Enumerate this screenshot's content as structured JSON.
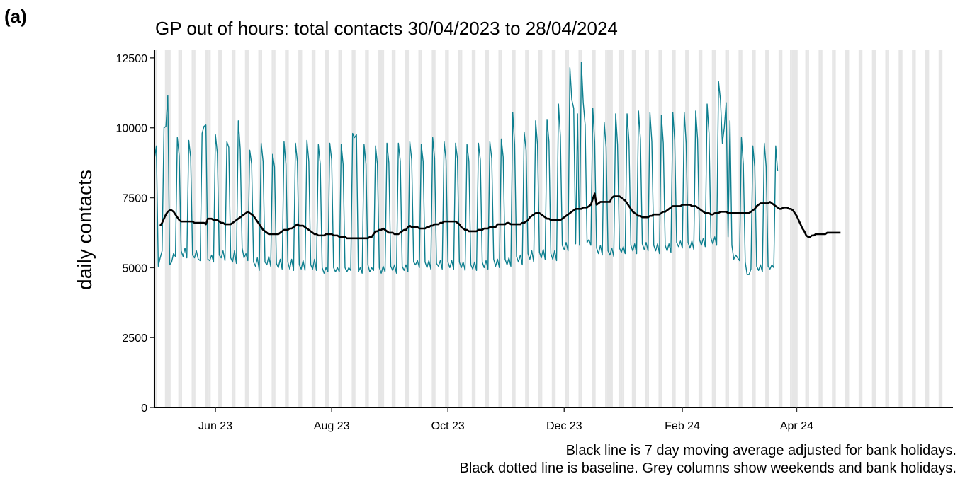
{
  "panel_label": "(a)",
  "chart_data": {
    "type": "line",
    "title": "GP out of hours: total contacts 30/04/2023 to 28/04/2024",
    "xlabel": "",
    "ylabel": "daily contacts",
    "xlim": [
      "2023-04-30",
      "2024-06-22"
    ],
    "ylim": [
      0,
      12800
    ],
    "yticks": [
      0,
      2500,
      5000,
      7500,
      10000,
      12500
    ],
    "xticks": [
      {
        "date": "2023-06-01",
        "label": "Jun 23"
      },
      {
        "date": "2023-08-01",
        "label": "Aug 23"
      },
      {
        "date": "2023-10-01",
        "label": "Oct 23"
      },
      {
        "date": "2023-12-01",
        "label": "Dec 23"
      },
      {
        "date": "2024-02-01",
        "label": "Feb 24"
      },
      {
        "date": "2024-04-01",
        "label": "Apr 24"
      }
    ],
    "series_color": "#0e7f8f",
    "average_color": "#000000",
    "shade_color": "#e6e6e6",
    "bank_holidays": [
      "2023-05-01",
      "2023-05-08",
      "2023-05-29",
      "2023-08-28",
      "2023-12-25",
      "2023-12-26",
      "2024-01-01",
      "2024-03-29",
      "2024-04-01"
    ],
    "series": [
      {
        "key": "daily",
        "start": "2023-04-30",
        "values": [
          8900,
          9350,
          5050,
          5350,
          5600,
          10000,
          10050,
          11150,
          5100,
          5200,
          5500,
          5400,
          9650,
          9000,
          5600,
          5400,
          5700,
          5350,
          9550,
          8950,
          5450,
          5350,
          5600,
          5300,
          5250,
          9800,
          10050,
          10100,
          5300,
          5250,
          5450,
          5200,
          9750,
          9100,
          5450,
          5350,
          5600,
          5250,
          9500,
          9300,
          5350,
          5200,
          5600,
          5150,
          10250,
          9250,
          5700,
          5350,
          5500,
          5250,
          9200,
          8700,
          5200,
          5050,
          5350,
          4900,
          9450,
          8800,
          5200,
          5100,
          5400,
          5050,
          9050,
          8600,
          5150,
          5000,
          5300,
          4950,
          9500,
          8700,
          5200,
          4950,
          5300,
          4900,
          9450,
          8800,
          5100,
          4950,
          5250,
          4900,
          9550,
          8800,
          5100,
          4950,
          5300,
          4900,
          9400,
          8700,
          5000,
          4800,
          5000,
          4850,
          9450,
          8850,
          5000,
          4850,
          5000,
          4850,
          9400,
          8700,
          5000,
          4850,
          5000,
          4900,
          9800,
          9650,
          9750,
          4850,
          5000,
          4800,
          9400,
          8700,
          5100,
          4850,
          5000,
          4900,
          9350,
          8700,
          5000,
          4800,
          5050,
          4850,
          9450,
          8750,
          5050,
          4900,
          5100,
          4800,
          9450,
          8800,
          5050,
          4900,
          5100,
          4850,
          9500,
          8850,
          5200,
          5100,
          5250,
          5000,
          9400,
          8800,
          5200,
          5000,
          5250,
          4950,
          9650,
          8900,
          5150,
          5050,
          5250,
          4950,
          9500,
          8850,
          5200,
          5000,
          5250,
          4950,
          9450,
          8900,
          5200,
          5000,
          5200,
          4900,
          9400,
          8800,
          5100,
          4950,
          5200,
          4900,
          9450,
          8850,
          5200,
          5000,
          5250,
          4950,
          9500,
          8900,
          5300,
          5050,
          5300,
          5000,
          9600,
          8950,
          5300,
          5100,
          5350,
          5050,
          10550,
          9400,
          5400,
          5200,
          5450,
          5100,
          9850,
          9200,
          5500,
          5300,
          5600,
          5200,
          10250,
          9400,
          5550,
          5350,
          5650,
          5300,
          10300,
          9500,
          5500,
          5300,
          5600,
          5250,
          10850,
          9700,
          5800,
          5650,
          5900,
          5600,
          12150,
          11000,
          10700,
          5850,
          10500,
          5800,
          12350,
          10900,
          10100,
          5900,
          6000,
          5800,
          10700,
          9500,
          5700,
          5500,
          5800,
          5450,
          10200,
          9300,
          5600,
          5450,
          5700,
          5400,
          10500,
          9400,
          5700,
          5550,
          5750,
          5500,
          10500,
          9500,
          5800,
          5600,
          5850,
          5500,
          10600,
          9600,
          5850,
          5650,
          5900,
          5600,
          10550,
          9500,
          5800,
          5600,
          5850,
          5500,
          10450,
          9450,
          5800,
          5600,
          5850,
          5550,
          10550,
          9550,
          5900,
          5750,
          5950,
          5700,
          10550,
          9450,
          5900,
          5700,
          5950,
          5650,
          10600,
          9600,
          6000,
          5800,
          6050,
          5750,
          10850,
          9800,
          6050,
          5850,
          6100,
          5800,
          11650,
          11000,
          9450,
          10000,
          10900,
          6100,
          10250,
          5800,
          5300,
          5450,
          5350,
          5250,
          9650,
          8700,
          5200,
          4750,
          4750,
          4950,
          9350,
          8600,
          5050,
          4900,
          5100,
          4850,
          9450,
          8600,
          5050,
          4950,
          5100,
          5000,
          9350,
          8450
        ]
      },
      {
        "key": "moving_average",
        "start": "2023-05-03",
        "values": [
          6500,
          6600,
          6750,
          6900,
          7000,
          7050,
          7050,
          7000,
          6900,
          6800,
          6700,
          6650,
          6650,
          6650,
          6650,
          6650,
          6650,
          6650,
          6600,
          6600,
          6600,
          6600,
          6600,
          6600,
          6550,
          6750,
          6750,
          6750,
          6700,
          6700,
          6700,
          6650,
          6600,
          6600,
          6550,
          6550,
          6550,
          6550,
          6600,
          6650,
          6700,
          6750,
          6800,
          6850,
          6900,
          6950,
          7000,
          6950,
          6900,
          6850,
          6750,
          6650,
          6550,
          6450,
          6350,
          6300,
          6250,
          6200,
          6200,
          6200,
          6200,
          6200,
          6200,
          6250,
          6300,
          6350,
          6350,
          6350,
          6400,
          6400,
          6450,
          6500,
          6550,
          6500,
          6500,
          6500,
          6450,
          6400,
          6350,
          6300,
          6250,
          6200,
          6200,
          6150,
          6150,
          6150,
          6150,
          6200,
          6200,
          6200,
          6200,
          6150,
          6150,
          6150,
          6100,
          6100,
          6100,
          6100,
          6050,
          6050,
          6050,
          6050,
          6050,
          6050,
          6050,
          6050,
          6050,
          6050,
          6050,
          6050,
          6100,
          6100,
          6200,
          6300,
          6300,
          6350,
          6350,
          6400,
          6350,
          6300,
          6250,
          6250,
          6250,
          6200,
          6200,
          6200,
          6250,
          6300,
          6350,
          6350,
          6450,
          6500,
          6450,
          6450,
          6450,
          6450,
          6400,
          6400,
          6400,
          6400,
          6450,
          6450,
          6500,
          6500,
          6550,
          6550,
          6550,
          6600,
          6600,
          6650,
          6650,
          6650,
          6650,
          6650,
          6650,
          6650,
          6600,
          6550,
          6450,
          6400,
          6350,
          6350,
          6300,
          6300,
          6300,
          6300,
          6300,
          6350,
          6350,
          6350,
          6400,
          6400,
          6400,
          6450,
          6450,
          6450,
          6450,
          6550,
          6550,
          6550,
          6550,
          6550,
          6600,
          6600,
          6550,
          6550,
          6550,
          6550,
          6550,
          6550,
          6600,
          6600,
          6650,
          6700,
          6800,
          6850,
          6900,
          6950,
          6950,
          6950,
          6900,
          6850,
          6800,
          6750,
          6750,
          6700,
          6700,
          6700,
          6700,
          6700,
          6700,
          6750,
          6800,
          6850,
          6900,
          6950,
          7000,
          7050,
          7100,
          7100,
          7100,
          7100,
          7150,
          7150,
          7150,
          7200,
          7250,
          7450,
          7650,
          7250,
          7300,
          7350,
          7350,
          7350,
          7350,
          7350,
          7350,
          7500,
          7550,
          7550,
          7550,
          7550,
          7500,
          7450,
          7400,
          7300,
          7200,
          7100,
          7000,
          6950,
          6900,
          6850,
          6850,
          6800,
          6800,
          6800,
          6800,
          6850,
          6850,
          6900,
          6900,
          6900,
          6900,
          6950,
          7000,
          7000,
          7050,
          7100,
          7150,
          7200,
          7200,
          7200,
          7200,
          7200,
          7250,
          7250,
          7250,
          7250,
          7250,
          7200,
          7200,
          7200,
          7150,
          7100,
          7050,
          7000,
          6950,
          6950,
          6950,
          6900,
          6900,
          6950,
          6950,
          6950,
          7000,
          7000,
          7000,
          7000,
          6950,
          6950,
          6950,
          6950,
          6950,
          6950,
          6950,
          6950,
          6950,
          6950,
          6950,
          6950,
          7000,
          7050,
          7100,
          7200,
          7250,
          7300,
          7300,
          7300,
          7300,
          7300,
          7350,
          7300,
          7250,
          7200,
          7150,
          7100,
          7100,
          7150,
          7150,
          7150,
          7100,
          7100,
          7050,
          6950,
          6850,
          6700,
          6550,
          6400,
          6300,
          6150,
          6100,
          6100,
          6150,
          6150,
          6200,
          6200,
          6200,
          6200,
          6200,
          6200,
          6250,
          6250,
          6250,
          6250,
          6250,
          6250,
          6250,
          6250
        ]
      }
    ]
  },
  "captions": [
    "Black line is 7 day moving average adjusted for bank holidays.",
    "Black dotted line is baseline. Grey columns show weekends and bank holidays."
  ]
}
